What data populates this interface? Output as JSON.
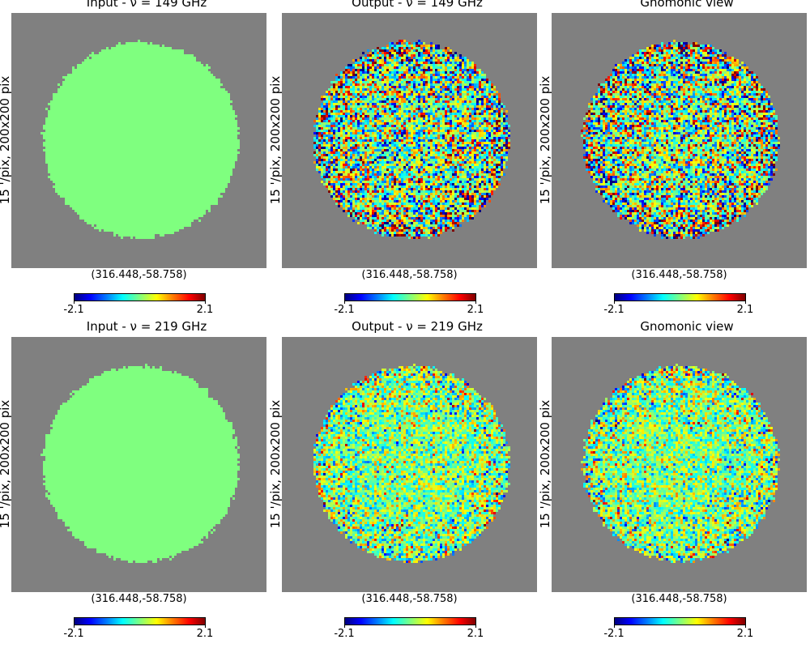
{
  "panels": [
    {
      "title": "Input - ν = 149 GHz",
      "ylabel": "15 '/pix,   200x200 pix",
      "coord": "(316.448,-58.758)",
      "colorbar": {
        "min": "-2.1",
        "max": "2.1"
      },
      "map": "uniform",
      "noise_amplitude": 0.0
    },
    {
      "title": "Output - ν = 149 GHz",
      "ylabel": "15 '/pix,   200x200 pix",
      "coord": "(316.448,-58.758)",
      "colorbar": {
        "min": "-2.1",
        "max": "2.1"
      },
      "map": "noisy",
      "noise_amplitude": 0.95
    },
    {
      "title": "Gnomonic view",
      "ylabel": "15 '/pix,   200x200 pix",
      "coord": "(316.448,-58.758)",
      "colorbar": {
        "min": "-2.1",
        "max": "2.1"
      },
      "map": "noisy",
      "noise_amplitude": 0.95
    },
    {
      "title": "Input - ν = 219 GHz",
      "ylabel": "15 '/pix,   200x200 pix",
      "coord": "(316.448,-58.758)",
      "colorbar": {
        "min": "-2.1",
        "max": "2.1"
      },
      "map": "uniform",
      "noise_amplitude": 0.0
    },
    {
      "title": "Output - ν = 219 GHz",
      "ylabel": "15 '/pix,   200x200 pix",
      "coord": "(316.448,-58.758)",
      "colorbar": {
        "min": "-2.1",
        "max": "2.1"
      },
      "map": "noisy",
      "noise_amplitude": 0.55
    },
    {
      "title": "Gnomonic view",
      "ylabel": "15 '/pix,   200x200 pix",
      "coord": "(316.448,-58.758)",
      "colorbar": {
        "min": "-2.1",
        "max": "2.1"
      },
      "map": "noisy",
      "noise_amplitude": 0.55
    }
  ],
  "colors": {
    "background_mask": "#808080",
    "uniform_fill": "#7fff7f"
  }
}
